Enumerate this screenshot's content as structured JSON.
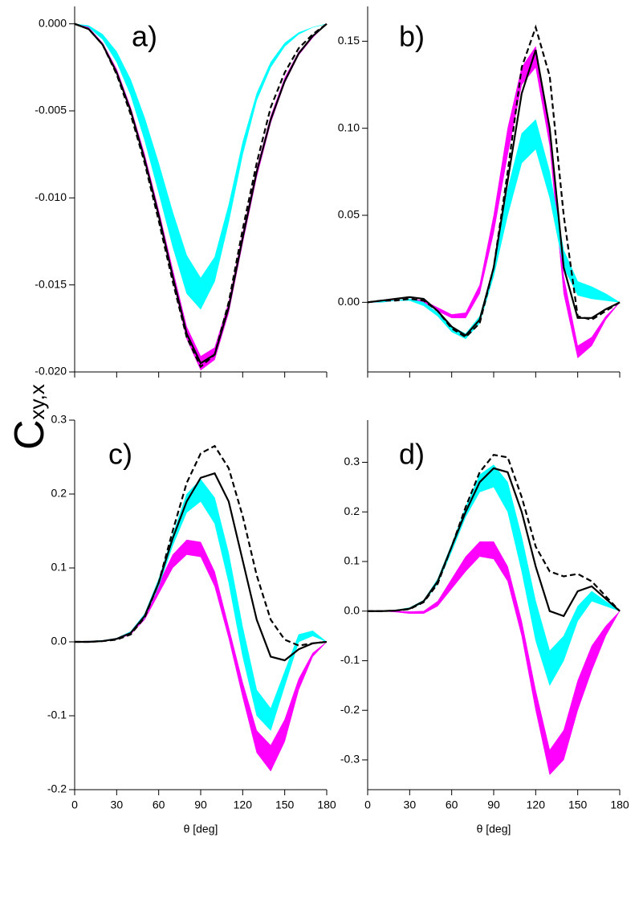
{
  "figure": {
    "ylabel": "C",
    "ylabel_sub": "xy,x"
  },
  "chart_data": [
    {
      "type": "line",
      "annotation": "a)",
      "x": [
        0,
        10,
        20,
        30,
        40,
        50,
        60,
        70,
        80,
        90,
        100,
        110,
        120,
        130,
        140,
        150,
        160,
        170,
        180
      ],
      "xlim": [
        0,
        180
      ],
      "xticks": [
        0,
        30,
        60,
        90,
        120,
        150,
        180
      ],
      "xticklabels": false,
      "ylim": [
        -0.02,
        0.001
      ],
      "yticks": [
        {
          "value": 0,
          "label": "0.000"
        },
        {
          "value": -0.005,
          "label": "-0.005"
        },
        {
          "value": -0.01,
          "label": "-0.010"
        },
        {
          "value": -0.015,
          "label": "-0.015"
        },
        {
          "value": -0.02,
          "label": "-0.020"
        }
      ],
      "series": [
        {
          "style": "band",
          "color": "#00ffff",
          "lower": [
            0,
            -0.0002,
            -0.0009,
            -0.0022,
            -0.0041,
            -0.0067,
            -0.0097,
            -0.0128,
            -0.0155,
            -0.0164,
            -0.0148,
            -0.0114,
            -0.0075,
            -0.0044,
            -0.0025,
            -0.0013,
            -0.0006,
            -0.0002,
            0
          ],
          "upper": [
            0,
            -0.0001,
            -0.0006,
            -0.0016,
            -0.0032,
            -0.0054,
            -0.008,
            -0.0108,
            -0.0133,
            -0.0146,
            -0.0134,
            -0.0104,
            -0.0068,
            -0.004,
            -0.0022,
            -0.0011,
            -0.0005,
            -0.0002,
            0
          ]
        },
        {
          "style": "band",
          "color": "#ff00ff",
          "lower": [
            0,
            -0.0003,
            -0.0012,
            -0.0028,
            -0.0051,
            -0.0079,
            -0.0112,
            -0.0147,
            -0.0181,
            -0.0199,
            -0.0193,
            -0.0166,
            -0.0126,
            -0.0088,
            -0.0057,
            -0.0034,
            -0.0018,
            -0.0008,
            0
          ],
          "upper": [
            0,
            -0.0002,
            -0.0011,
            -0.0026,
            -0.0048,
            -0.0075,
            -0.0107,
            -0.0141,
            -0.0174,
            -0.0191,
            -0.0186,
            -0.016,
            -0.012,
            -0.0083,
            -0.0053,
            -0.0031,
            -0.0016,
            -0.0007,
            0
          ]
        },
        {
          "style": "dashed",
          "color": "#000000",
          "values": [
            0,
            -0.0003,
            -0.0012,
            -0.0029,
            -0.0052,
            -0.008,
            -0.0113,
            -0.0148,
            -0.018,
            -0.0197,
            -0.019,
            -0.016,
            -0.0118,
            -0.008,
            -0.0048,
            -0.0028,
            -0.0014,
            -0.0006,
            0
          ]
        },
        {
          "style": "solid",
          "color": "#000000",
          "values": [
            0,
            -0.0003,
            -0.0012,
            -0.0028,
            -0.005,
            -0.0078,
            -0.011,
            -0.0145,
            -0.0178,
            -0.0195,
            -0.019,
            -0.0163,
            -0.0123,
            -0.0085,
            -0.0055,
            -0.0033,
            -0.0017,
            -0.0007,
            0
          ]
        }
      ]
    },
    {
      "type": "line",
      "annotation": "b)",
      "x": [
        0,
        10,
        20,
        30,
        40,
        50,
        60,
        70,
        80,
        90,
        100,
        110,
        120,
        130,
        140,
        150,
        160,
        170,
        180
      ],
      "xlim": [
        0,
        180
      ],
      "xticks": [
        0,
        30,
        60,
        90,
        120,
        150,
        180
      ],
      "xticklabels": false,
      "ylim": [
        -0.04,
        0.17
      ],
      "yticks": [
        {
          "value": 0,
          "label": "0.00"
        },
        {
          "value": 0.05,
          "label": "0.05"
        },
        {
          "value": 0.1,
          "label": "0.10"
        },
        0.15
      ],
      "series": [
        {
          "style": "band",
          "color": "#ff00ff",
          "lower": [
            0,
            0,
            0.001,
            0.001,
            0,
            -0.005,
            -0.009,
            -0.009,
            0.005,
            0.04,
            0.085,
            0.125,
            0.135,
            0.09,
            0.005,
            -0.032,
            -0.025,
            -0.01,
            0
          ],
          "upper": [
            0,
            0.001,
            0.001,
            0.002,
            0.001,
            -0.003,
            -0.007,
            -0.006,
            0.01,
            0.05,
            0.1,
            0.135,
            0.147,
            0.1,
            0.015,
            -0.025,
            -0.02,
            -0.008,
            0
          ]
        },
        {
          "style": "band",
          "color": "#00ffff",
          "lower": [
            0,
            0,
            0.001,
            0.001,
            -0.002,
            -0.008,
            -0.017,
            -0.021,
            -0.012,
            0.015,
            0.05,
            0.08,
            0.088,
            0.06,
            0.02,
            0.004,
            0.002,
            0.001,
            0
          ],
          "upper": [
            0,
            0.001,
            0.001,
            0.002,
            0,
            -0.006,
            -0.014,
            -0.018,
            -0.008,
            0.02,
            0.065,
            0.097,
            0.105,
            0.075,
            0.03,
            0.012,
            0.009,
            0.005,
            0
          ]
        },
        {
          "style": "dashed",
          "color": "#000000",
          "values": [
            0,
            0.001,
            0.001,
            0.002,
            0.001,
            -0.005,
            -0.015,
            -0.02,
            -0.012,
            0.02,
            0.075,
            0.135,
            0.158,
            0.13,
            0.05,
            -0.008,
            -0.01,
            -0.005,
            0
          ]
        },
        {
          "style": "solid",
          "color": "#000000",
          "values": [
            0,
            0.001,
            0.002,
            0.003,
            0.002,
            -0.005,
            -0.014,
            -0.019,
            -0.01,
            0.02,
            0.07,
            0.12,
            0.145,
            0.1,
            0.02,
            -0.009,
            -0.009,
            -0.004,
            0
          ]
        }
      ]
    },
    {
      "type": "line",
      "annotation": "c)",
      "xlabel": "θ [deg]",
      "x": [
        0,
        10,
        20,
        30,
        40,
        50,
        60,
        70,
        80,
        90,
        100,
        110,
        120,
        130,
        140,
        150,
        160,
        170,
        180
      ],
      "xlim": [
        0,
        180
      ],
      "xticks": [
        0,
        30,
        60,
        90,
        120,
        150,
        180
      ],
      "xticklabels": true,
      "ylim": [
        -0.2,
        0.3
      ],
      "yticks": [
        -0.2,
        -0.1,
        {
          "value": 0,
          "label": "0.0"
        },
        0.1,
        0.2,
        0.3
      ],
      "series": [
        {
          "style": "band",
          "color": "#ff00ff",
          "lower": [
            0,
            0,
            0.001,
            0.003,
            0.01,
            0.03,
            0.065,
            0.1,
            0.118,
            0.115,
            0.075,
            0.005,
            -0.075,
            -0.15,
            -0.175,
            -0.135,
            -0.065,
            -0.02,
            0
          ],
          "upper": [
            0,
            0.001,
            0.002,
            0.005,
            0.014,
            0.038,
            0.078,
            0.118,
            0.138,
            0.135,
            0.095,
            0.02,
            -0.055,
            -0.12,
            -0.14,
            -0.105,
            -0.05,
            -0.015,
            0
          ]
        },
        {
          "style": "band",
          "color": "#00ffff",
          "lower": [
            0,
            0,
            0.001,
            0.003,
            0.011,
            0.033,
            0.075,
            0.13,
            0.175,
            0.19,
            0.16,
            0.08,
            -0.02,
            -0.1,
            -0.12,
            -0.06,
            0,
            0.008,
            0
          ],
          "upper": [
            0,
            0.001,
            0.002,
            0.005,
            0.014,
            0.038,
            0.085,
            0.145,
            0.2,
            0.22,
            0.195,
            0.12,
            0.02,
            -0.065,
            -0.09,
            -0.04,
            0.01,
            0.015,
            0
          ]
        },
        {
          "style": "dashed",
          "color": "#000000",
          "values": [
            0,
            0,
            0.001,
            0.003,
            0.01,
            0.033,
            0.08,
            0.15,
            0.215,
            0.255,
            0.265,
            0.235,
            0.17,
            0.09,
            0.03,
            0.003,
            -0.005,
            -0.002,
            0
          ]
        },
        {
          "style": "solid",
          "color": "#000000",
          "values": [
            0,
            0,
            0.001,
            0.004,
            0.012,
            0.035,
            0.08,
            0.14,
            0.19,
            0.222,
            0.228,
            0.19,
            0.11,
            0.03,
            -0.02,
            -0.025,
            -0.01,
            -0.002,
            0
          ]
        }
      ]
    },
    {
      "type": "line",
      "annotation": "d)",
      "xlabel": "θ [deg]",
      "x": [
        0,
        10,
        20,
        30,
        40,
        50,
        60,
        70,
        80,
        90,
        100,
        110,
        120,
        130,
        140,
        150,
        160,
        170,
        180
      ],
      "xlim": [
        0,
        180
      ],
      "xticks": [
        0,
        30,
        60,
        90,
        120,
        150,
        180
      ],
      "xticklabels": true,
      "ylim": [
        -0.36,
        0.385
      ],
      "yticks": [
        -0.3,
        -0.2,
        -0.1,
        {
          "value": 0,
          "label": "0.0"
        },
        0.1,
        0.2,
        0.3
      ],
      "series": [
        {
          "style": "band",
          "color": "#ff00ff",
          "lower": [
            0,
            0,
            -0.002,
            -0.005,
            -0.005,
            0.01,
            0.045,
            0.08,
            0.11,
            0.105,
            0.06,
            -0.05,
            -0.2,
            -0.33,
            -0.3,
            -0.2,
            -0.12,
            -0.05,
            0
          ],
          "upper": [
            0,
            0,
            0,
            -0.001,
            0,
            0.02,
            0.065,
            0.11,
            0.14,
            0.14,
            0.09,
            -0.02,
            -0.16,
            -0.28,
            -0.24,
            -0.14,
            -0.07,
            -0.03,
            0
          ]
        },
        {
          "style": "band",
          "color": "#00ffff",
          "lower": [
            0,
            0,
            0.001,
            0.004,
            0.017,
            0.055,
            0.12,
            0.19,
            0.24,
            0.25,
            0.2,
            0.08,
            -0.06,
            -0.15,
            -0.1,
            -0.02,
            0.02,
            0.01,
            0
          ],
          "upper": [
            0,
            0.001,
            0.002,
            0.007,
            0.022,
            0.065,
            0.135,
            0.21,
            0.275,
            0.295,
            0.26,
            0.15,
            0.02,
            -0.08,
            -0.05,
            0.01,
            0.04,
            0.02,
            0
          ]
        },
        {
          "style": "dashed",
          "color": "#000000",
          "values": [
            0,
            0,
            0.001,
            0.004,
            0.018,
            0.055,
            0.13,
            0.21,
            0.28,
            0.315,
            0.31,
            0.23,
            0.13,
            0.08,
            0.07,
            0.075,
            0.06,
            0.03,
            0
          ]
        },
        {
          "style": "solid",
          "color": "#000000",
          "values": [
            0,
            0,
            0.001,
            0.005,
            0.02,
            0.06,
            0.13,
            0.2,
            0.26,
            0.288,
            0.28,
            0.2,
            0.09,
            0,
            -0.01,
            0.04,
            0.05,
            0.025,
            0
          ]
        }
      ]
    }
  ]
}
